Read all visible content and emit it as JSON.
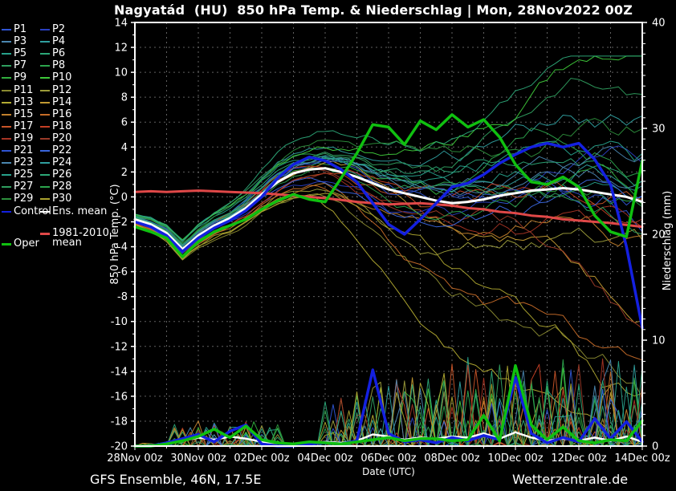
{
  "title": "Nagyatád  (HU)  850 hPa Temp. & Niederschlag | Mon, 28Nov2022 00Z",
  "footer": {
    "left": "GFS Ensemble, 46N, 17.5E",
    "right": "Wetterzentrale.de"
  },
  "colors": {
    "background": "#000000",
    "frame": "#ffffff",
    "grid": "#7a7a7a",
    "control": "#1420e0",
    "ens_mean": "#ffffff",
    "clim": "#e04848",
    "oper": "#10c010"
  },
  "legend": {
    "control_label": "Control",
    "ens_mean_label": "Ens. mean",
    "clim_label_line1": "1981-2010",
    "clim_label_line2": "mean",
    "oper_label": "Oper"
  },
  "chart_data": {
    "type": "line",
    "title": "Nagyatád (HU) 850 hPa Temp. & Niederschlag | Mon, 28Nov2022 00Z",
    "x_axis": {
      "label": "Date (UTC)",
      "tick_labels": [
        "28Nov 00z",
        "30Nov 00z",
        "02Dec 00z",
        "04Dec 00z",
        "06Dec 00z",
        "08Dec 00z",
        "10Dec 00z",
        "12Dec 00z",
        "14Dec 00z"
      ],
      "tick_days": [
        0,
        2,
        4,
        6,
        8,
        10,
        12,
        14,
        16
      ],
      "range_days": [
        0,
        16
      ],
      "grid_step_days": 1
    },
    "y_left": {
      "label": "850 hPa Temp. (°C)",
      "min": -20,
      "max": 14,
      "tick_labels": [
        "14",
        "12",
        "10",
        "8",
        "6",
        "4",
        "2",
        "0",
        "-2",
        "-4",
        "-6",
        "-8",
        "-10",
        "-12",
        "-14",
        "-16",
        "-18",
        "-20"
      ],
      "tick_values": [
        14,
        12,
        10,
        8,
        6,
        4,
        2,
        0,
        -2,
        -4,
        -6,
        -8,
        -10,
        -12,
        -14,
        -16,
        -18,
        -20
      ]
    },
    "y_right": {
      "label": "Niederschlag (mm)",
      "min": 0,
      "max": 40,
      "tick_labels": [
        "40",
        "30",
        "20",
        "10",
        "0"
      ],
      "tick_values": [
        40,
        30,
        20,
        10,
        0
      ]
    },
    "time_step_hours": 12,
    "series": [
      {
        "name": "1981-2010 mean",
        "axis": "temp",
        "color": "#e04848",
        "width": 3,
        "values": [
          0.4,
          0.45,
          0.4,
          0.45,
          0.5,
          0.45,
          0.4,
          0.35,
          0.3,
          0.2,
          0.1,
          0.0,
          -0.1,
          -0.25,
          -0.4,
          -0.5,
          -0.6,
          -0.55,
          -0.5,
          -0.6,
          -0.7,
          -0.9,
          -1.0,
          -1.2,
          -1.3,
          -1.5,
          -1.6,
          -1.8,
          -1.9,
          -2.0,
          -2.1,
          -2.25,
          -2.4
        ]
      },
      {
        "name": "Ens. mean",
        "axis": "temp",
        "color": "#ffffff",
        "width": 3,
        "values": [
          -1.8,
          -2.2,
          -2.9,
          -4.2,
          -3.1,
          -2.3,
          -1.7,
          -0.9,
          0.2,
          1.2,
          1.9,
          2.2,
          2.3,
          2.0,
          1.6,
          1.1,
          0.6,
          0.3,
          0.0,
          -0.3,
          -0.5,
          -0.4,
          -0.2,
          0.1,
          0.3,
          0.5,
          0.6,
          0.7,
          0.6,
          0.4,
          0.2,
          0.0,
          -0.4
        ]
      },
      {
        "name": "Control",
        "axis": "temp",
        "color": "#1420e0",
        "width": 3.5,
        "values": [
          -2.0,
          -2.4,
          -3.1,
          -4.4,
          -3.3,
          -2.5,
          -1.9,
          -1.1,
          0.0,
          1.5,
          2.6,
          3.2,
          2.9,
          2.2,
          1.2,
          -0.5,
          -2.2,
          -3.0,
          -1.8,
          -0.5,
          0.8,
          1.1,
          1.8,
          2.7,
          3.4,
          4.0,
          4.3,
          4.0,
          4.3,
          3.0,
          1.0,
          -4.0,
          -10.5
        ]
      },
      {
        "name": "Oper",
        "axis": "temp",
        "color": "#10c010",
        "width": 3.5,
        "values": [
          -2.4,
          -2.8,
          -3.3,
          -4.8,
          -3.6,
          -2.8,
          -2.3,
          -1.8,
          -1.0,
          -0.3,
          0.2,
          -0.2,
          -0.4,
          1.5,
          3.5,
          5.8,
          5.6,
          4.2,
          6.1,
          5.4,
          6.6,
          5.6,
          6.2,
          4.8,
          2.6,
          1.2,
          1.0,
          1.6,
          0.8,
          -1.5,
          -2.8,
          -3.2,
          2.9
        ]
      },
      {
        "name": "Ens. mean Niederschlag",
        "axis": "precip",
        "color": "#ffffff",
        "width": 2.5,
        "values": [
          0,
          0.05,
          0.2,
          0.5,
          0.8,
          0.6,
          0.9,
          0.7,
          0.4,
          0.3,
          0.2,
          0.3,
          0.4,
          0.3,
          0.5,
          1.1,
          0.9,
          0.6,
          0.8,
          0.7,
          0.9,
          0.8,
          1.2,
          0.7,
          1.3,
          0.8,
          0.5,
          0.7,
          0.5,
          0.8,
          0.5,
          0.9,
          0.4
        ]
      },
      {
        "name": "Control Niederschlag",
        "axis": "precip",
        "color": "#1420e0",
        "width": 3.5,
        "values": [
          0,
          0,
          0.3,
          0.7,
          1.1,
          0.4,
          1.4,
          2.0,
          0.2,
          0,
          0,
          0.2,
          0.3,
          0.2,
          0.5,
          7.2,
          1.2,
          0.4,
          0.6,
          0.3,
          0.8,
          0.5,
          1.0,
          0.6,
          6.5,
          1.2,
          0.3,
          0.8,
          0.4,
          2.6,
          0.7,
          2.3,
          0.4
        ]
      },
      {
        "name": "Oper Niederschlag",
        "axis": "precip",
        "color": "#10c010",
        "width": 3.5,
        "values": [
          0,
          0,
          0.2,
          0.5,
          0.9,
          1.6,
          0.8,
          1.9,
          0.6,
          0.3,
          0.2,
          0.4,
          0.3,
          0.2,
          0.4,
          0.6,
          0.8,
          0.5,
          0.7,
          0.7,
          0.5,
          0.6,
          2.9,
          0.5,
          7.6,
          2.0,
          0.6,
          1.8,
          0.5,
          0.3,
          0.6,
          0.5,
          2.4
        ]
      }
    ],
    "ensemble": {
      "spread": [
        0.5,
        0.6,
        0.7,
        0.8,
        0.9,
        1.0,
        1.1,
        1.3,
        1.5,
        1.7,
        1.9,
        2.0,
        2.2,
        2.4,
        2.7,
        3.0,
        3.3,
        3.6,
        3.9,
        4.2,
        4.5,
        4.7,
        4.9,
        5.1,
        5.3,
        5.5,
        5.7,
        5.9,
        6.1,
        6.3,
        6.5,
        6.7,
        6.9
      ],
      "members": [
        {
          "label": "P1",
          "color": "#2f55d4",
          "bias": 0.2,
          "seed": 108
        },
        {
          "label": "P2",
          "color": "#2a3fc0",
          "bias": -0.2,
          "seed": 209
        },
        {
          "label": "P3",
          "color": "#4a86b0",
          "bias": 0.5,
          "seed": 310
        },
        {
          "label": "P4",
          "color": "#2f9f9f",
          "bias": 0.9,
          "seed": 411
        },
        {
          "label": "P5",
          "color": "#27a18b",
          "bias": 1.1,
          "seed": 512
        },
        {
          "label": "P6",
          "color": "#2ca878",
          "bias": 0.8,
          "seed": 613
        },
        {
          "label": "P7",
          "color": "#2f9e5f",
          "bias": 1.3,
          "seed": 714
        },
        {
          "label": "P8",
          "color": "#2ca44d",
          "bias": 1.0,
          "seed": 815
        },
        {
          "label": "P9",
          "color": "#31ae3e",
          "bias": 0.6,
          "seed": 916
        },
        {
          "label": "P10",
          "color": "#3ec93a",
          "bias": 1.6,
          "seed": 1017
        },
        {
          "label": "P11",
          "color": "#8a8a30",
          "bias": -1.1,
          "seed": 1118
        },
        {
          "label": "P12",
          "color": "#9c9c3a",
          "bias": -0.7,
          "seed": 1219
        },
        {
          "label": "P13",
          "color": "#b3ab32",
          "bias": -1.5,
          "seed": 1320
        },
        {
          "label": "P14",
          "color": "#c29a32",
          "bias": -0.5,
          "seed": 1421
        },
        {
          "label": "P15",
          "color": "#c1802c",
          "bias": -0.9,
          "seed": 1522
        },
        {
          "label": "P16",
          "color": "#c66c28",
          "bias": -1.3,
          "seed": 1623
        },
        {
          "label": "P17",
          "color": "#c85428",
          "bias": -0.4,
          "seed": 1724
        },
        {
          "label": "P18",
          "color": "#c43e24",
          "bias": -0.1,
          "seed": 1825
        },
        {
          "label": "P19",
          "color": "#a63424",
          "bias": -0.8,
          "seed": 1926
        },
        {
          "label": "P20",
          "color": "#9a3a28",
          "bias": -0.6,
          "seed": 2027
        },
        {
          "label": "P21",
          "color": "#2f55d4",
          "bias": 0.3,
          "seed": 2128
        },
        {
          "label": "P22",
          "color": "#3a66dd",
          "bias": -0.5,
          "seed": 2229
        },
        {
          "label": "P23",
          "color": "#4a86b0",
          "bias": 0.4,
          "seed": 2330
        },
        {
          "label": "P24",
          "color": "#2f9f9f",
          "bias": 0.8,
          "seed": 2431
        },
        {
          "label": "P25",
          "color": "#27a18b",
          "bias": 1.0,
          "seed": 2532
        },
        {
          "label": "P26",
          "color": "#2ca878",
          "bias": 1.2,
          "seed": 2633
        },
        {
          "label": "P27",
          "color": "#2f9e5f",
          "bias": 0.7,
          "seed": 2734
        },
        {
          "label": "P28",
          "color": "#2ca44d",
          "bias": 0.5,
          "seed": 2835
        },
        {
          "label": "P29",
          "color": "#2d8f3c",
          "bias": 0.9,
          "seed": 2936
        },
        {
          "label": "P30",
          "color": "#aaa22e",
          "bias": -1.2,
          "seed": 3037
        }
      ],
      "trends": [
        {
          "member": 13,
          "start": 5.5,
          "rate": -1.35
        },
        {
          "member": 16,
          "start": 7,
          "rate": -1.15
        },
        {
          "member": 11,
          "start": 6,
          "rate": -0.85
        },
        {
          "member": 30,
          "start": 9,
          "rate": -1.5
        },
        {
          "member": 20,
          "start": 11,
          "rate": -1.0
        },
        {
          "member": 14,
          "start": 8,
          "rate": -0.7
        },
        {
          "member": 10,
          "start": 8,
          "rate": 0.85
        },
        {
          "member": 26,
          "start": 9,
          "rate": 0.65
        },
        {
          "member": 7,
          "start": 10,
          "rate": 0.55
        },
        {
          "member": 24,
          "start": 11,
          "rate": 0.6
        }
      ],
      "member_precip": {
        "early": {
          "from": 1.25,
          "to": 4.5,
          "chance": 0.32,
          "max": 2.5
        },
        "late": {
          "from": 6.0,
          "to": 16,
          "chance": 0.3,
          "max": 8.5
        },
        "quiet_chance": 0.06,
        "quiet_max": 0.3
      }
    }
  }
}
